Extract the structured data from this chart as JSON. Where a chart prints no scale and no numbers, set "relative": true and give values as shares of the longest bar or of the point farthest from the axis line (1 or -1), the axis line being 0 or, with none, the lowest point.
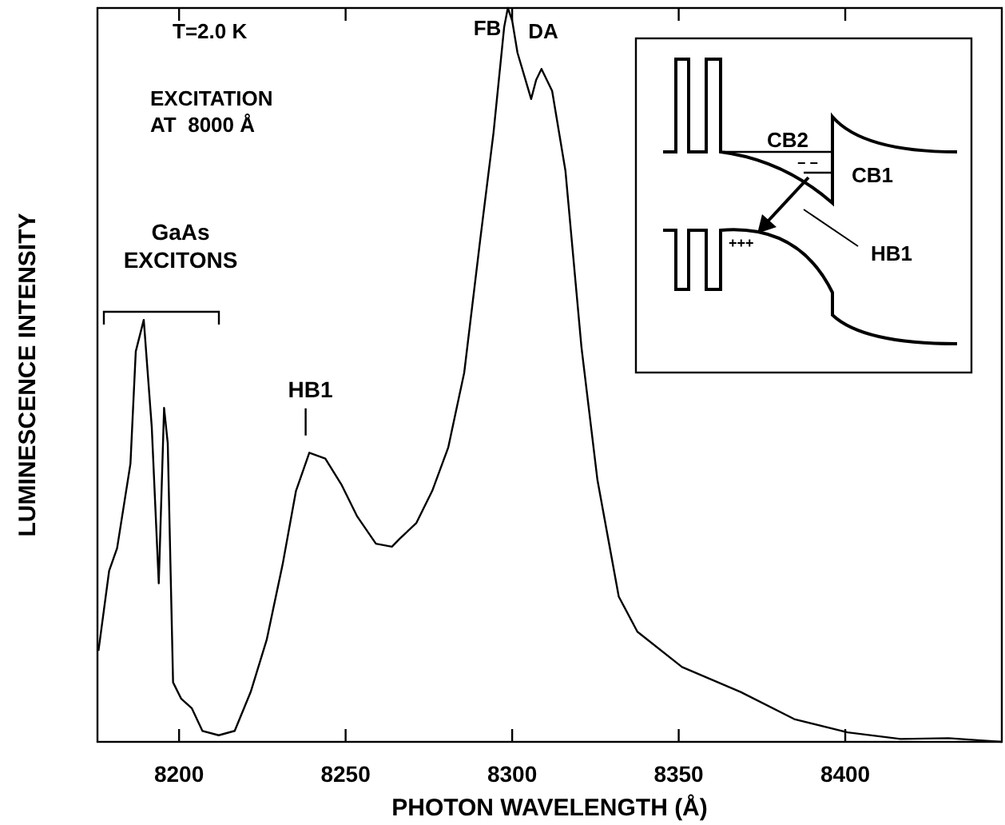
{
  "chart_data": {
    "type": "line",
    "relative": true,
    "xlabel": "PHOTON WAVELENGTH (Å)",
    "ylabel": "LUMINESCENCE INTENSITY",
    "xlim": [
      8175.5,
      8447
    ],
    "xticks": [
      8200,
      8250,
      8300,
      8350,
      8400
    ],
    "grid": false,
    "line_style": "solid",
    "series": [
      {
        "color": "#000000",
        "x": [
          8175.8,
          8179,
          8181.4,
          8185.4,
          8187,
          8189.4,
          8191.8,
          8193.9,
          8195.5,
          8196.6,
          8198.2,
          8200.6,
          8203.8,
          8207,
          8211.9,
          8216.7,
          8221.5,
          8226.3,
          8231.1,
          8235.1,
          8239.1,
          8243.9,
          8248.7,
          8253.5,
          8259.1,
          8263.9,
          8266.3,
          8271.2,
          8276,
          8280.8,
          8285.6,
          8290.4,
          8294.4,
          8297.6,
          8298.7,
          8300,
          8301.6,
          8305.7,
          8307.2,
          8308.8,
          8312,
          8316,
          8320.8,
          8325.6,
          8332,
          8337.6,
          8351,
          8368.6,
          8384.7,
          8400.7,
          8416.6,
          8431,
          8440.6,
          8447
        ],
        "values": [
          0.124,
          0.233,
          0.264,
          0.379,
          0.532,
          0.575,
          0.429,
          0.216,
          0.455,
          0.407,
          0.081,
          0.059,
          0.046,
          0.015,
          0.009,
          0.015,
          0.068,
          0.139,
          0.242,
          0.342,
          0.394,
          0.386,
          0.351,
          0.307,
          0.27,
          0.266,
          0.277,
          0.298,
          0.342,
          0.401,
          0.503,
          0.684,
          0.83,
          0.974,
          1,
          0.983,
          0.939,
          0.876,
          0.902,
          0.917,
          0.887,
          0.778,
          0.538,
          0.357,
          0.198,
          0.15,
          0.102,
          0.068,
          0.031,
          0.013,
          0.004,
          0.005,
          0.002,
          0
        ]
      }
    ],
    "annotations": [
      "T=2.0 K",
      "EXCITATION\nAT  8000 Å",
      "GaAs\nEXCITONS",
      {
        "text": "HB1",
        "x": 8238,
        "y": 0.4
      },
      "FB",
      "DA",
      "CB2",
      "CB1",
      "HB1",
      "+++",
      "− −"
    ]
  }
}
